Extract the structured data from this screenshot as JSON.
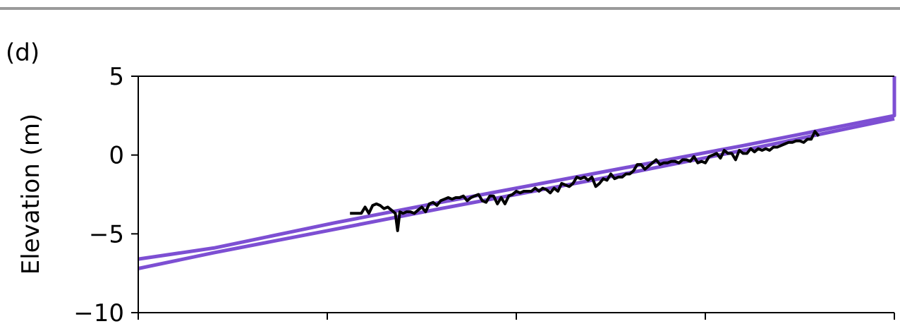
{
  "panel_label": "(d)",
  "colors": {
    "model": "#7d4fd3",
    "observed": "#000000",
    "axis": "#000000",
    "separator": "#9a9a9a"
  },
  "chart_data": {
    "type": "line",
    "title": "",
    "xlabel": "",
    "ylabel": "Elevation (m)",
    "xlim": [
      0,
      1000
    ],
    "ylim": [
      -10,
      5
    ],
    "yticks": [
      -10,
      -5,
      0,
      5
    ],
    "ytick_labels": [
      "−10",
      "−5",
      "0",
      "5"
    ],
    "xticks": [
      0,
      250,
      500,
      750,
      1000
    ],
    "grid": false,
    "legend": "none",
    "series": [
      {
        "style": "model",
        "x": [
          0,
          100,
          200,
          260,
          400,
          600,
          800,
          1000,
          1000
        ],
        "y": [
          -6.6,
          -5.9,
          -4.9,
          -4.3,
          -3.0,
          -1.2,
          0.6,
          2.5,
          5.0
        ]
      },
      {
        "style": "model",
        "x": [
          0,
          100,
          250,
          400,
          600,
          800,
          1000
        ],
        "y": [
          -7.2,
          -6.2,
          -4.8,
          -3.4,
          -1.6,
          0.3,
          2.3
        ]
      },
      {
        "style": "observed",
        "x": [
          280,
          295,
          300,
          305,
          310,
          315,
          320,
          325,
          330,
          335,
          340,
          343,
          346,
          350,
          355,
          360,
          365,
          370,
          375,
          380,
          385,
          390,
          395,
          400,
          405,
          410,
          415,
          420,
          425,
          430,
          435,
          440,
          445,
          450,
          455,
          460,
          465,
          470,
          475,
          480,
          485,
          490,
          495,
          500,
          505,
          510,
          515,
          520,
          525,
          530,
          535,
          540,
          545,
          550,
          555,
          560,
          565,
          570,
          575,
          580,
          585,
          590,
          595,
          600,
          605,
          610,
          615,
          620,
          625,
          630,
          635,
          640,
          645,
          650,
          655,
          660,
          665,
          670,
          675,
          680,
          685,
          690,
          695,
          700,
          705,
          710,
          715,
          720,
          725,
          730,
          735,
          740,
          745,
          750,
          755,
          760,
          765,
          770,
          775,
          780,
          785,
          790,
          795,
          800,
          805,
          810,
          815,
          820,
          825,
          830,
          835,
          840,
          845,
          850,
          855,
          860,
          865,
          870,
          875,
          880,
          885,
          890,
          895,
          900
        ],
        "y": [
          -3.7,
          -3.7,
          -3.3,
          -3.7,
          -3.2,
          -3.1,
          -3.2,
          -3.4,
          -3.3,
          -3.5,
          -3.7,
          -4.8,
          -3.6,
          -3.7,
          -3.6,
          -3.6,
          -3.7,
          -3.5,
          -3.3,
          -3.6,
          -3.1,
          -3.0,
          -3.2,
          -2.9,
          -2.8,
          -2.7,
          -2.8,
          -2.7,
          -2.7,
          -2.6,
          -2.9,
          -2.7,
          -2.6,
          -2.5,
          -2.9,
          -3.0,
          -2.6,
          -2.6,
          -3.1,
          -2.7,
          -3.1,
          -2.6,
          -2.5,
          -2.3,
          -2.4,
          -2.3,
          -2.3,
          -2.3,
          -2.1,
          -2.3,
          -2.1,
          -2.2,
          -2.4,
          -2.1,
          -2.3,
          -1.8,
          -1.9,
          -2.0,
          -1.8,
          -1.4,
          -1.5,
          -1.4,
          -1.6,
          -1.4,
          -2.0,
          -1.8,
          -1.5,
          -1.6,
          -1.2,
          -1.5,
          -1.4,
          -1.4,
          -1.2,
          -1.2,
          -1.0,
          -0.6,
          -0.6,
          -0.9,
          -0.7,
          -0.5,
          -0.3,
          -0.6,
          -0.5,
          -0.5,
          -0.4,
          -0.4,
          -0.5,
          -0.3,
          -0.3,
          -0.4,
          -0.1,
          -0.5,
          -0.4,
          -0.5,
          -0.1,
          0.0,
          0.1,
          -0.2,
          0.3,
          0.1,
          0.1,
          -0.3,
          0.3,
          0.1,
          0.1,
          0.4,
          0.2,
          0.4,
          0.3,
          0.4,
          0.3,
          0.5,
          0.5,
          0.6,
          0.7,
          0.8,
          0.8,
          0.9,
          0.9,
          0.8,
          1.0,
          1.0,
          1.5,
          1.2
        ]
      }
    ]
  }
}
